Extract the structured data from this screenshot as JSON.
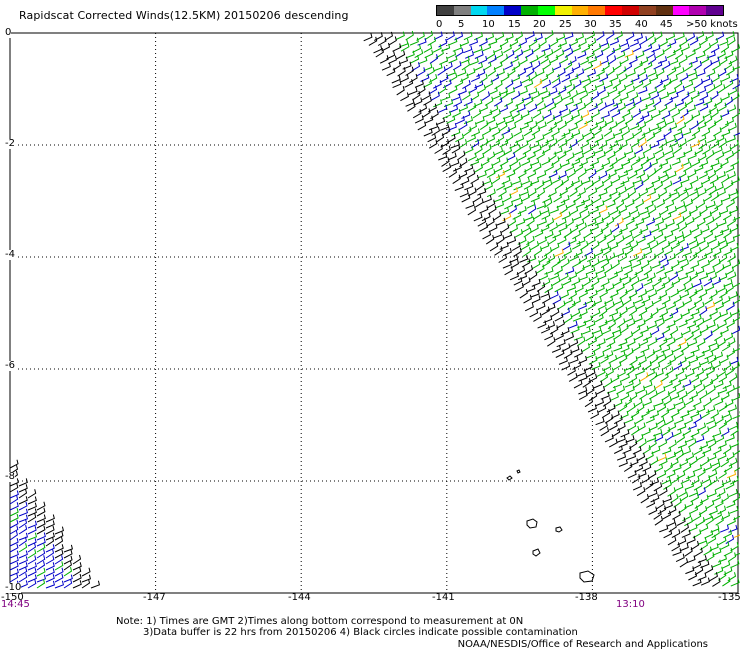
{
  "title": "Rapidscat Corrected Winds(12.5KM) 20150206 descending",
  "legend": {
    "ticks": [
      "0",
      "5",
      "10",
      "15",
      "20",
      "25",
      "30",
      "35",
      "40",
      "45",
      ">50 knots"
    ],
    "colors": [
      "#404040",
      "#808080",
      "#00d8f0",
      "#0080ff",
      "#0000c8",
      "#00b000",
      "#00ff00",
      "#f0f000",
      "#ffb000",
      "#ff7800",
      "#ff0000",
      "#d00000",
      "#904020",
      "#603010",
      "#ff00ff",
      "#b000b0",
      "#600090"
    ]
  },
  "map": {
    "x_ticks": [
      "-150",
      "-147",
      "-144",
      "-141",
      "-138",
      "-135"
    ],
    "x_values": [
      -150,
      -147,
      -144,
      -141,
      -138,
      -135
    ],
    "y_ticks": [
      "0",
      "-2",
      "-4",
      "-6",
      "-8",
      "-10"
    ],
    "y_values": [
      0,
      -2,
      -4,
      -6,
      -8,
      -10
    ],
    "lon_range": [
      -150,
      -135
    ],
    "lat_range": [
      -10,
      0
    ],
    "grid": true,
    "time_left": "14:45",
    "time_right": "13:10"
  },
  "notes": {
    "line1": "Note: 1) Times are GMT 2)Times along bottom correspond to measurement at 0N",
    "line2": "3)Data buffer is 22 hrs from 20150206 4) Black circles indicate possible contamination"
  },
  "credit": "NOAA/NESDIS/Office of Research and Applications"
}
